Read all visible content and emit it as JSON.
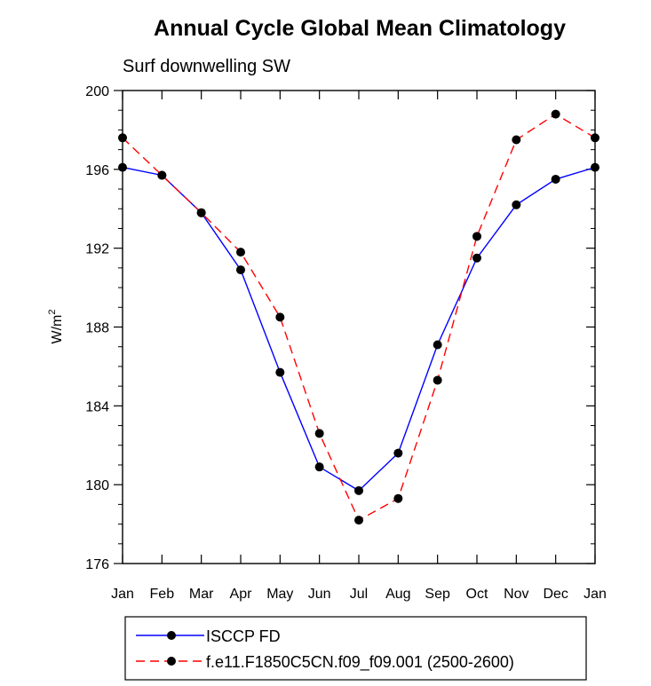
{
  "chart_data": {
    "type": "line",
    "title": "Annual Cycle Global Mean Climatology",
    "subtitle": "Surf downwelling SW",
    "ylabel": "W/m",
    "ylabel_superscript": "2",
    "xlabel": "",
    "categories": [
      "Jan",
      "Feb",
      "Mar",
      "Apr",
      "May",
      "Jun",
      "Jul",
      "Aug",
      "Sep",
      "Oct",
      "Nov",
      "Dec",
      "Jan"
    ],
    "ylim": [
      176,
      200
    ],
    "yticks": [
      176,
      180,
      184,
      188,
      192,
      196,
      200
    ],
    "ytick_labels": [
      "176",
      "180",
      "184",
      "188",
      "192",
      "196",
      "200"
    ],
    "grid": false,
    "legend_position": "bottom",
    "series": [
      {
        "name": "ISCCP FD",
        "color": "#0000ff",
        "dash": "solid",
        "values": [
          196.1,
          195.7,
          193.8,
          190.9,
          185.7,
          180.9,
          179.7,
          181.6,
          187.1,
          191.5,
          194.2,
          195.5,
          196.1
        ]
      },
      {
        "name": "f.e11.F1850C5CN.f09_f09.001 (2500-2600)",
        "color": "#ff0000",
        "dash": "dashed",
        "values": [
          197.6,
          195.7,
          193.8,
          191.8,
          188.5,
          182.6,
          178.2,
          179.3,
          185.3,
          192.6,
          197.5,
          198.8,
          197.6
        ]
      }
    ]
  }
}
